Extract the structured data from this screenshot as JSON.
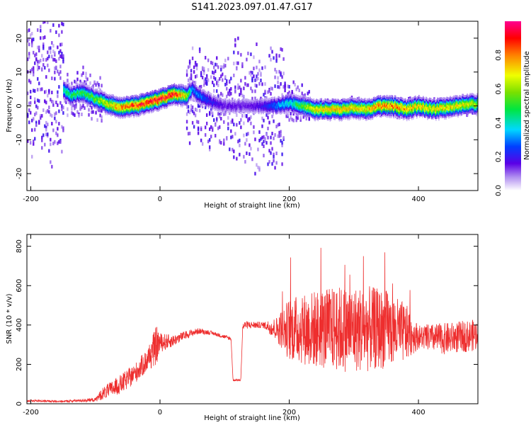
{
  "title": "S141.2023.097.01.47.G17",
  "chart_data": [
    {
      "type": "heatmap",
      "title": "S141.2023.097.01.47.G17",
      "xlabel": "Height of straight line (km)",
      "ylabel": "Frequency (Hz)",
      "xlim": [
        -206,
        492
      ],
      "ylim": [
        -25,
        25
      ],
      "xticks": [
        -200,
        0,
        200,
        400
      ],
      "yticks": [
        -20,
        -10,
        0,
        10,
        20
      ],
      "colorbar": {
        "label": "Normalized spectral amplitude",
        "range": [
          0,
          1
        ],
        "ticks": [
          "0.0",
          "0.2",
          "0.4",
          "0.6",
          "0.8"
        ]
      },
      "ridge": {
        "x": [
          -150,
          -140,
          -120,
          -100,
          -80,
          -60,
          -40,
          -20,
          0,
          20,
          40,
          50,
          60,
          80,
          100,
          120,
          140,
          160,
          180,
          200,
          220,
          240,
          260,
          280,
          300,
          320,
          340,
          360,
          380,
          400,
          420,
          440,
          460,
          480,
          492
        ],
        "freq": [
          5,
          3,
          4,
          2,
          0.5,
          -0.5,
          0,
          1,
          2,
          3.5,
          3,
          5,
          3,
          1,
          0,
          0,
          0,
          0,
          0,
          1,
          0,
          -1,
          -1,
          -1,
          -0.5,
          -1,
          0,
          0,
          -1,
          0,
          -1,
          -0.5,
          0,
          0.5,
          0.5
        ],
        "amplitude": [
          0.45,
          0.45,
          0.5,
          0.55,
          0.7,
          0.8,
          0.85,
          0.9,
          0.92,
          0.9,
          0.65,
          0.3,
          0.3,
          0.2,
          0.15,
          0.15,
          0.15,
          0.2,
          0.3,
          0.4,
          0.55,
          0.7,
          0.72,
          0.75,
          0.7,
          0.72,
          0.8,
          0.8,
          0.75,
          0.72,
          0.7,
          0.72,
          0.7,
          0.65,
          0.6
        ]
      }
    },
    {
      "type": "line",
      "xlabel": "Height of straight line (km)",
      "ylabel": "SNR (10 * v/v)",
      "xlim": [
        -206,
        492
      ],
      "ylim": [
        0,
        860
      ],
      "xticks": [
        -200,
        0,
        200,
        400
      ],
      "yticks": [
        0,
        200,
        400,
        600,
        800
      ],
      "color": "#ee2e2e",
      "series": [
        {
          "x": [
            -206,
            -150,
            -100,
            -90,
            -60,
            -40,
            -20,
            -5,
            0,
            20,
            40,
            60,
            80,
            100,
            110,
            113,
            125,
            128,
            132,
            160,
            180,
            200,
            240,
            280,
            320,
            350,
            380,
            400,
            440,
            492
          ],
          "y": [
            15,
            12,
            20,
            50,
            100,
            150,
            220,
            300,
            310,
            320,
            350,
            370,
            360,
            340,
            330,
            120,
            120,
            390,
            400,
            400,
            380,
            380,
            380,
            380,
            380,
            380,
            360,
            340,
            330,
            350
          ],
          "spread": [
            5,
            5,
            10,
            30,
            50,
            50,
            60,
            100,
            50,
            30,
            20,
            15,
            10,
            10,
            10,
            5,
            5,
            20,
            20,
            15,
            60,
            160,
            200,
            220,
            220,
            200,
            150,
            60,
            80,
            80
          ]
        }
      ]
    }
  ]
}
